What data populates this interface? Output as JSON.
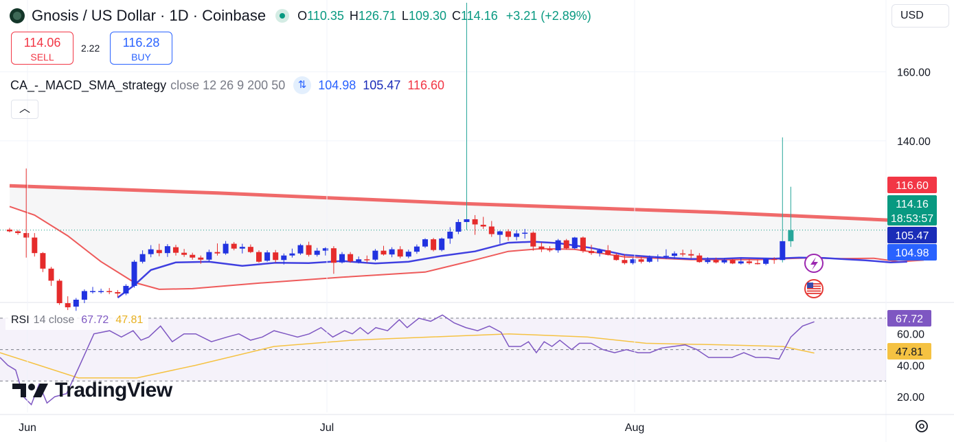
{
  "header": {
    "title": "Gnosis / US Dollar · 1D · Coinbase",
    "open_label": "O",
    "open": "110.35",
    "high_label": "H",
    "high": "126.71",
    "low_label": "L",
    "low": "109.30",
    "close_label": "C",
    "close": "114.16",
    "change": "+3.21 (+2.89%)",
    "logo_icon": "gnosis-logo-icon",
    "status_icon": "market-open-dot-icon"
  },
  "trade": {
    "sell_price": "114.06",
    "sell_label": "SELL",
    "spread": "2.22",
    "buy_price": "116.28",
    "buy_label": "BUY"
  },
  "indicator": {
    "name": "CA_-_MACD_SMA_strategy",
    "params": "close 12 26 9 200 50",
    "icon": "strategy-arrows-icon",
    "v1": "104.98",
    "v2": "105.47",
    "v3": "116.60"
  },
  "collapse_icon": "chevron-up-icon",
  "currency": "USD",
  "rsi": {
    "name": "RSI",
    "params": "14 close",
    "value": "67.72",
    "ma": "47.81"
  },
  "branding": "TradingView",
  "side_icons": [
    "flash-icon",
    "us-flag-icon"
  ],
  "settings_icon": "gear-icon",
  "colors": {
    "up": "#2133e0",
    "down": "#e52b2b",
    "sma200": "#ee5a5a",
    "macd_fast": "#3f3fe0",
    "macd_slow": "#ee5a5a",
    "rsi_line": "#7e57c2",
    "rsi_ma": "#f5c242"
  },
  "chart_data": {
    "type": "candlestick",
    "x_ticks": [
      "Jun",
      "Jul",
      "Aug"
    ],
    "y_ticks": [
      "160.00",
      "140.00"
    ],
    "ylim": [
      94,
      180
    ],
    "price_labels": [
      {
        "text": "116.60",
        "value": 116.6,
        "color": "#f23645"
      },
      {
        "text": "114.16",
        "value": 114.16,
        "color": "#089981",
        "sub": "18:53:57"
      },
      {
        "text": "105.47",
        "value": 105.47,
        "color": "#1a2cb8"
      },
      {
        "text": "104.98",
        "value": 104.98,
        "color": "#2962ff"
      }
    ],
    "candles": [
      [
        114.3,
        114.8,
        113.5,
        113.8
      ],
      [
        113.8,
        114.2,
        112.8,
        113.3
      ],
      [
        113.3,
        132,
        106.2,
        112
      ],
      [
        112,
        113.3,
        106.5,
        107.5
      ],
      [
        107.5,
        107.8,
        102,
        103
      ],
      [
        103,
        103.5,
        98,
        99.5
      ],
      [
        99.5,
        100,
        92.5,
        93
      ],
      [
        93,
        95,
        91,
        91.8
      ],
      [
        92,
        94.5,
        90.5,
        94
      ],
      [
        94,
        97,
        93,
        96.5
      ],
      [
        96.5,
        97.7,
        95.8,
        96.5
      ],
      [
        96.5,
        97.2,
        95.8,
        96.5
      ],
      [
        96.5,
        97.4,
        95.6,
        96.2
      ],
      [
        96.2,
        96.8,
        94.8,
        95.8
      ],
      [
        95.8,
        98.5,
        95.3,
        98
      ],
      [
        98,
        105.5,
        97.5,
        105
      ],
      [
        105,
        108.3,
        104.5,
        107.2
      ],
      [
        107.2,
        109.8,
        106.3,
        108.6
      ],
      [
        108.4,
        110.2,
        106.6,
        107.5
      ],
      [
        107.5,
        110.1,
        106.4,
        109.5
      ],
      [
        109.2,
        109.9,
        106.8,
        107.6
      ],
      [
        107.6,
        108.7,
        106.4,
        107
      ],
      [
        107,
        107.6,
        105.6,
        106.2
      ],
      [
        106.2,
        106.8,
        104.4,
        105.6
      ],
      [
        105.6,
        108.5,
        105,
        107.8
      ],
      [
        107.8,
        110.3,
        106.8,
        107.4
      ],
      [
        107.4,
        111,
        107,
        110.2
      ],
      [
        110.2,
        110.7,
        108.3,
        108.8
      ],
      [
        108.8,
        110.2,
        107.4,
        109.3
      ],
      [
        109.3,
        110,
        107.5,
        107.8
      ],
      [
        107.8,
        108.3,
        104.7,
        105
      ],
      [
        105.3,
        108.3,
        105,
        107.7
      ],
      [
        107.7,
        108.4,
        104.8,
        105.5
      ],
      [
        105.5,
        107.4,
        104.2,
        106.8
      ],
      [
        106.8,
        108.8,
        106.2,
        107.4
      ],
      [
        107.4,
        110.2,
        107,
        109.8
      ],
      [
        109.8,
        110.8,
        106.5,
        107
      ],
      [
        107,
        109,
        106.5,
        108.2
      ],
      [
        108.2,
        109.2,
        106.8,
        108.9
      ],
      [
        108.9,
        109.5,
        101.5,
        104.7
      ],
      [
        104.8,
        107.8,
        104.5,
        107.2
      ],
      [
        107.2,
        107.8,
        104.7,
        105.1
      ],
      [
        105,
        106.5,
        104.5,
        105.7
      ],
      [
        105.7,
        106.8,
        104.7,
        105.6
      ],
      [
        105.6,
        108.7,
        105.2,
        108.2
      ],
      [
        108.2,
        109.6,
        106.8,
        107.1
      ],
      [
        107.1,
        109.2,
        106.3,
        108.6
      ],
      [
        108.6,
        109.5,
        106,
        106.5
      ],
      [
        106.5,
        108.5,
        106,
        107.9
      ],
      [
        107.9,
        110,
        107.3,
        109.4
      ],
      [
        109.4,
        111.8,
        109,
        111.5
      ],
      [
        111.5,
        111.9,
        108,
        108.4
      ],
      [
        108.4,
        112,
        108,
        111.7
      ],
      [
        111.7,
        115,
        110.2,
        113.7
      ],
      [
        113.7,
        117.3,
        113,
        116.5
      ],
      [
        116.5,
        180,
        114.2,
        117.3
      ],
      [
        117.3,
        118.5,
        112.8,
        115.8
      ],
      [
        115.7,
        118,
        114.5,
        115.2
      ],
      [
        115.2,
        116.8,
        112.2,
        113
      ],
      [
        112.8,
        114,
        110.2,
        113.8
      ],
      [
        113.8,
        114.4,
        111.1,
        112.2
      ],
      [
        112.2,
        114.1,
        111.2,
        113.2
      ],
      [
        113.2,
        114.5,
        111.7,
        113.4
      ],
      [
        113.4,
        113.8,
        108.2,
        109.4
      ],
      [
        109.4,
        110.6,
        107.8,
        108.6
      ],
      [
        108.6,
        109.5,
        107.8,
        108.3
      ],
      [
        108.3,
        111.6,
        107.6,
        111.2
      ],
      [
        111.2,
        111.6,
        108.5,
        108.9
      ],
      [
        108.9,
        112.2,
        108.6,
        112
      ],
      [
        112,
        112.3,
        107.6,
        108.1
      ],
      [
        108.1,
        109.9,
        107,
        107.5
      ],
      [
        107.5,
        108.8,
        106.5,
        108.3
      ],
      [
        108.3,
        109.8,
        106.8,
        107
      ],
      [
        107,
        107.5,
        105.3,
        105.5
      ],
      [
        105.5,
        107.1,
        104.2,
        104.6
      ],
      [
        104.6,
        106.1,
        104.2,
        105.7
      ],
      [
        105.7,
        106.5,
        104.5,
        105
      ],
      [
        105,
        106.8,
        104.7,
        106.2
      ],
      [
        106.2,
        107.1,
        105,
        106.5
      ],
      [
        106.5,
        108.6,
        105.8,
        106.7
      ],
      [
        106.7,
        108,
        105.8,
        107.4
      ],
      [
        107.4,
        108.5,
        106.5,
        107.2
      ],
      [
        107.2,
        108.5,
        106,
        106.8
      ],
      [
        106.8,
        107.5,
        104.7,
        104.9
      ],
      [
        104.9,
        106.3,
        104.4,
        105.5
      ],
      [
        105.5,
        106.2,
        104.5,
        104.8
      ],
      [
        104.8,
        106,
        104.4,
        105.5
      ],
      [
        105.5,
        105.8,
        104.3,
        104.5
      ],
      [
        104.5,
        106,
        104.2,
        105.1
      ],
      [
        105.1,
        105.8,
        104.2,
        104.6
      ],
      [
        104.6,
        105.6,
        104.2,
        104.4
      ],
      [
        104.4,
        106,
        104,
        105.8
      ],
      [
        105.8,
        106.3,
        104.4,
        105.5
      ],
      [
        105.5,
        141,
        104.8,
        110.95
      ],
      [
        110.95,
        126.71,
        109.3,
        114.16
      ]
    ],
    "sma200": [
      [
        0,
        127
      ],
      [
        25,
        124.9
      ],
      [
        55,
        121.8
      ],
      [
        85,
        119.3
      ],
      [
        110,
        116.6
      ]
    ],
    "macd_slow": [
      [
        0,
        121
      ],
      [
        3,
        118.5
      ],
      [
        7,
        112.5
      ],
      [
        11,
        105
      ],
      [
        15,
        99
      ],
      [
        18,
        97
      ],
      [
        22,
        97.2
      ],
      [
        30,
        98.8
      ],
      [
        40,
        100.5
      ],
      [
        50,
        102
      ],
      [
        56,
        105.5
      ],
      [
        60,
        108
      ],
      [
        64,
        108.8
      ],
      [
        68,
        108.6
      ],
      [
        74,
        106.4
      ],
      [
        82,
        105.6
      ],
      [
        90,
        105.6
      ],
      [
        96,
        106.1
      ],
      [
        100,
        105.9
      ],
      [
        104,
        106
      ],
      [
        107,
        105
      ],
      [
        110,
        105.47
      ]
    ],
    "macd_fast": [
      [
        13,
        94.6
      ],
      [
        15,
        98.2
      ],
      [
        17,
        102.6
      ],
      [
        20,
        104.8
      ],
      [
        24,
        105
      ],
      [
        28,
        103.8
      ],
      [
        32,
        104.7
      ],
      [
        36,
        104.6
      ],
      [
        40,
        105.2
      ],
      [
        44,
        104.5
      ],
      [
        48,
        105
      ],
      [
        52,
        106.7
      ],
      [
        56,
        108
      ],
      [
        60,
        110.5
      ],
      [
        63,
        110.8
      ],
      [
        66,
        110.4
      ],
      [
        70,
        109
      ],
      [
        74,
        107
      ],
      [
        78,
        106.3
      ],
      [
        82,
        105.8
      ],
      [
        86,
        105.9
      ],
      [
        88,
        106.1
      ],
      [
        92,
        105.9
      ],
      [
        95,
        106.2
      ],
      [
        98,
        106.1
      ],
      [
        100,
        105.8
      ],
      [
        103,
        105.4
      ],
      [
        106,
        104.8
      ],
      [
        108,
        104.98
      ]
    ],
    "rsi": {
      "ylim": [
        10,
        80
      ],
      "y_ticks": [
        "60.00",
        "40.00",
        "20.00"
      ],
      "band": [
        30,
        70
      ],
      "mid": 50,
      "values": [
        [
          0,
          45
        ],
        [
          2,
          40
        ],
        [
          4,
          37
        ],
        [
          6,
          20
        ],
        [
          8,
          15
        ],
        [
          10,
          28
        ],
        [
          12,
          16
        ],
        [
          14,
          20
        ],
        [
          17,
          22
        ],
        [
          20,
          38
        ],
        [
          24,
          60
        ],
        [
          28,
          62
        ],
        [
          31,
          58
        ],
        [
          34,
          62
        ],
        [
          36,
          56
        ],
        [
          38,
          58
        ],
        [
          41,
          65
        ],
        [
          44,
          55
        ],
        [
          47,
          60
        ],
        [
          50,
          60
        ],
        [
          54,
          55
        ],
        [
          58,
          58
        ],
        [
          61,
          60
        ],
        [
          64,
          56
        ],
        [
          67,
          58
        ],
        [
          70,
          62
        ],
        [
          73,
          60
        ],
        [
          76,
          58
        ],
        [
          79,
          60
        ],
        [
          82,
          64
        ],
        [
          85,
          58
        ],
        [
          88,
          62
        ],
        [
          90,
          60
        ],
        [
          92,
          64
        ],
        [
          94,
          60
        ],
        [
          96,
          64
        ],
        [
          99,
          62
        ],
        [
          102,
          69
        ],
        [
          104,
          64
        ],
        [
          107,
          70
        ],
        [
          110,
          68
        ],
        [
          113,
          72
        ],
        [
          116,
          67
        ],
        [
          119,
          64
        ],
        [
          122,
          62
        ],
        [
          125,
          65
        ],
        [
          128,
          61
        ],
        [
          130,
          52
        ],
        [
          133,
          52
        ],
        [
          135,
          55
        ],
        [
          137,
          48
        ],
        [
          139,
          55
        ],
        [
          141,
          52
        ],
        [
          143,
          56
        ],
        [
          146,
          50
        ],
        [
          148,
          54
        ],
        [
          151,
          54
        ],
        [
          154,
          50
        ],
        [
          157,
          48
        ],
        [
          160,
          50
        ],
        [
          163,
          48
        ],
        [
          166,
          48
        ],
        [
          169,
          51
        ],
        [
          172,
          52
        ],
        [
          175,
          53
        ],
        [
          178,
          50
        ],
        [
          181,
          45
        ],
        [
          184,
          45
        ],
        [
          187,
          45
        ],
        [
          190,
          48
        ],
        [
          193,
          45
        ],
        [
          196,
          45
        ],
        [
          199,
          44
        ],
        [
          202,
          58
        ],
        [
          205,
          65
        ],
        [
          208,
          67.72
        ]
      ],
      "ma": [
        [
          0,
          48
        ],
        [
          10,
          40
        ],
        [
          20,
          32
        ],
        [
          35,
          32
        ],
        [
          50,
          40
        ],
        [
          70,
          52
        ],
        [
          90,
          56
        ],
        [
          110,
          58
        ],
        [
          130,
          60
        ],
        [
          150,
          58
        ],
        [
          165,
          54
        ],
        [
          185,
          53
        ],
        [
          200,
          52
        ],
        [
          208,
          47.81
        ]
      ]
    }
  }
}
